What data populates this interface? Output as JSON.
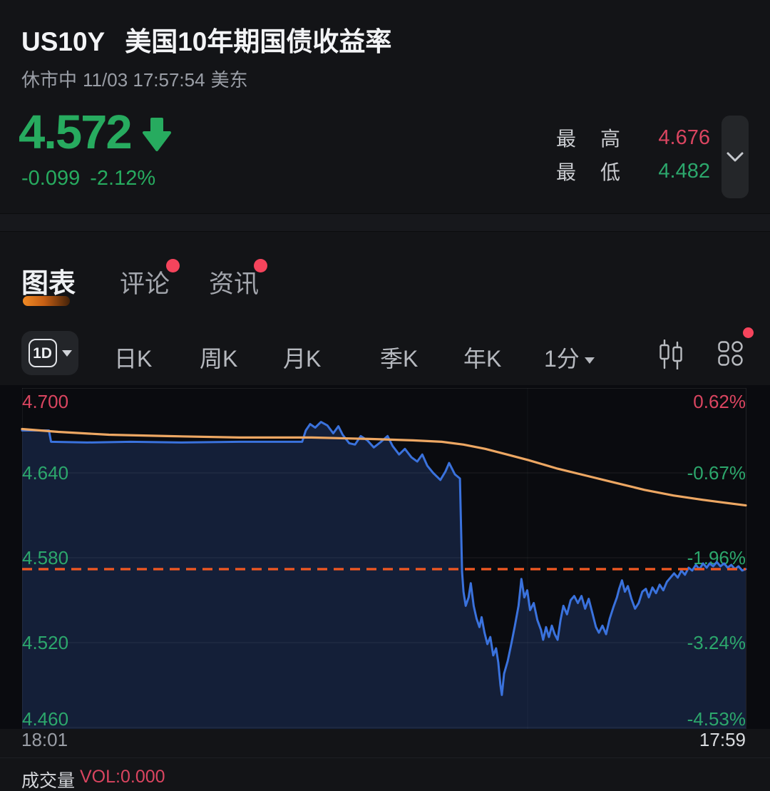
{
  "header": {
    "symbol": "US10Y",
    "name": "美国10年期国债收益率",
    "market_status": "休市中",
    "datetime": "11/03 17:57:54",
    "timezone": "美东",
    "price": "4.572",
    "change": "-0.099",
    "change_percent": "-2.12%",
    "high_label": "最高",
    "high_value": "4.676",
    "low_label": "最低",
    "low_value": "4.482"
  },
  "tabs": [
    {
      "label": "图表",
      "active": true,
      "badge": false
    },
    {
      "label": "评论",
      "active": false,
      "badge": true
    },
    {
      "label": "资讯",
      "active": false,
      "badge": true
    }
  ],
  "toolbar": {
    "range_selected": "1D",
    "items": [
      "日K",
      "周K",
      "月K",
      "季K",
      "年K"
    ],
    "minute_label": "1分",
    "icons": [
      "candlestick-icon",
      "grid-icon"
    ],
    "badge_color": "#f5445c"
  },
  "footer": {
    "volume_label": "成交量",
    "volume_value": "VOL:0.000"
  },
  "colors": {
    "up_red": "#da4560",
    "down_green": "#27ab5f",
    "axis_green": "#2ca76c",
    "axis_red": "#da4560",
    "accent_orange": "#f08a25"
  },
  "chart_data": {
    "type": "line",
    "x_range": [
      "18:01",
      "17:59"
    ],
    "y_axis_left": [
      "4.700",
      "4.640",
      "4.580",
      "4.520",
      "4.460"
    ],
    "y_axis_right": [
      "0.62%",
      "-0.67%",
      "-1.96%",
      "-3.24%",
      "-4.53%"
    ],
    "ylim": [
      4.46,
      4.7
    ],
    "grid_step": 0.06,
    "prev_close": 4.671,
    "current_price_line": {
      "value": 4.572,
      "style": "dashed",
      "color": "#ed5722"
    },
    "series": [
      {
        "name": "price",
        "color": "#3a72dd",
        "fill": "rgba(58,114,221,0.20)",
        "points": [
          [
            0.0,
            4.67
          ],
          [
            0.037,
            4.67
          ],
          [
            0.04,
            4.662
          ],
          [
            0.09,
            4.6615
          ],
          [
            0.15,
            4.662
          ],
          [
            0.22,
            4.6615
          ],
          [
            0.3,
            4.662
          ],
          [
            0.387,
            4.662
          ],
          [
            0.392,
            4.67
          ],
          [
            0.398,
            4.6745
          ],
          [
            0.405,
            4.672
          ],
          [
            0.413,
            4.676
          ],
          [
            0.422,
            4.6735
          ],
          [
            0.43,
            4.668
          ],
          [
            0.437,
            4.673
          ],
          [
            0.443,
            4.667
          ],
          [
            0.452,
            4.661
          ],
          [
            0.46,
            4.66
          ],
          [
            0.468,
            4.666
          ],
          [
            0.477,
            4.663
          ],
          [
            0.486,
            4.658
          ],
          [
            0.496,
            4.662
          ],
          [
            0.505,
            4.666
          ],
          [
            0.512,
            4.659
          ],
          [
            0.521,
            4.653
          ],
          [
            0.529,
            4.657
          ],
          [
            0.538,
            4.651
          ],
          [
            0.546,
            4.648
          ],
          [
            0.553,
            4.653
          ],
          [
            0.56,
            4.645
          ],
          [
            0.568,
            4.64
          ],
          [
            0.578,
            4.635
          ],
          [
            0.585,
            4.641
          ],
          [
            0.59,
            4.647
          ],
          [
            0.598,
            4.639
          ],
          [
            0.605,
            4.636
          ],
          [
            0.608,
            4.57
          ],
          [
            0.61,
            4.556
          ],
          [
            0.613,
            4.546
          ],
          [
            0.617,
            4.552
          ],
          [
            0.62,
            4.562
          ],
          [
            0.624,
            4.546
          ],
          [
            0.628,
            4.537
          ],
          [
            0.632,
            4.531
          ],
          [
            0.635,
            4.538
          ],
          [
            0.639,
            4.527
          ],
          [
            0.643,
            4.519
          ],
          [
            0.647,
            4.524
          ],
          [
            0.651,
            4.511
          ],
          [
            0.655,
            4.516
          ],
          [
            0.658,
            4.506
          ],
          [
            0.661,
            4.49
          ],
          [
            0.663,
            4.483
          ],
          [
            0.666,
            4.498
          ],
          [
            0.671,
            4.507
          ],
          [
            0.676,
            4.519
          ],
          [
            0.681,
            4.532
          ],
          [
            0.686,
            4.546
          ],
          [
            0.69,
            4.565
          ],
          [
            0.694,
            4.552
          ],
          [
            0.698,
            4.557
          ],
          [
            0.702,
            4.543
          ],
          [
            0.707,
            4.548
          ],
          [
            0.712,
            4.536
          ],
          [
            0.717,
            4.529
          ],
          [
            0.72,
            4.522
          ],
          [
            0.724,
            4.531
          ],
          [
            0.728,
            4.524
          ],
          [
            0.732,
            4.532
          ],
          [
            0.736,
            4.526
          ],
          [
            0.74,
            4.522
          ],
          [
            0.744,
            4.536
          ],
          [
            0.748,
            4.546
          ],
          [
            0.753,
            4.54
          ],
          [
            0.758,
            4.55
          ],
          [
            0.763,
            4.553
          ],
          [
            0.768,
            4.548
          ],
          [
            0.773,
            4.553
          ],
          [
            0.778,
            4.544
          ],
          [
            0.783,
            4.551
          ],
          [
            0.788,
            4.541
          ],
          [
            0.793,
            4.531
          ],
          [
            0.797,
            4.527
          ],
          [
            0.802,
            4.532
          ],
          [
            0.807,
            4.526
          ],
          [
            0.812,
            4.537
          ],
          [
            0.817,
            4.545
          ],
          [
            0.822,
            4.552
          ],
          [
            0.825,
            4.558
          ],
          [
            0.829,
            4.564
          ],
          [
            0.833,
            4.556
          ],
          [
            0.837,
            4.56
          ],
          [
            0.842,
            4.551
          ],
          [
            0.847,
            4.544
          ],
          [
            0.852,
            4.548
          ],
          [
            0.857,
            4.556
          ],
          [
            0.862,
            4.558
          ],
          [
            0.866,
            4.552
          ],
          [
            0.871,
            4.559
          ],
          [
            0.876,
            4.555
          ],
          [
            0.881,
            4.561
          ],
          [
            0.886,
            4.557
          ],
          [
            0.891,
            4.563
          ],
          [
            0.896,
            4.566
          ],
          [
            0.901,
            4.569
          ],
          [
            0.906,
            4.566
          ],
          [
            0.911,
            4.571
          ],
          [
            0.916,
            4.568
          ],
          [
            0.921,
            4.573
          ],
          [
            0.926,
            4.571
          ],
          [
            0.931,
            4.575
          ],
          [
            0.936,
            4.572
          ],
          [
            0.941,
            4.576
          ],
          [
            0.946,
            4.573
          ],
          [
            0.95,
            4.576
          ],
          [
            0.955,
            4.574
          ],
          [
            0.96,
            4.577
          ],
          [
            0.965,
            4.574
          ],
          [
            0.97,
            4.576
          ],
          [
            0.975,
            4.573
          ],
          [
            0.98,
            4.575
          ],
          [
            0.985,
            4.572
          ],
          [
            0.99,
            4.574
          ],
          [
            0.995,
            4.571
          ],
          [
            1.0,
            4.572
          ]
        ]
      },
      {
        "name": "average",
        "color": "#eda763",
        "points": [
          [
            0.0,
            4.671
          ],
          [
            0.05,
            4.669
          ],
          [
            0.12,
            4.667
          ],
          [
            0.2,
            4.666
          ],
          [
            0.3,
            4.665
          ],
          [
            0.4,
            4.665
          ],
          [
            0.48,
            4.664
          ],
          [
            0.54,
            4.663
          ],
          [
            0.58,
            4.662
          ],
          [
            0.61,
            4.66
          ],
          [
            0.64,
            4.657
          ],
          [
            0.67,
            4.653
          ],
          [
            0.7,
            4.649
          ],
          [
            0.74,
            4.643
          ],
          [
            0.78,
            4.638
          ],
          [
            0.82,
            4.633
          ],
          [
            0.86,
            4.628
          ],
          [
            0.9,
            4.624
          ],
          [
            0.94,
            4.621
          ],
          [
            0.97,
            4.619
          ],
          [
            1.0,
            4.617
          ]
        ]
      }
    ],
    "legend": false,
    "grid": true
  }
}
